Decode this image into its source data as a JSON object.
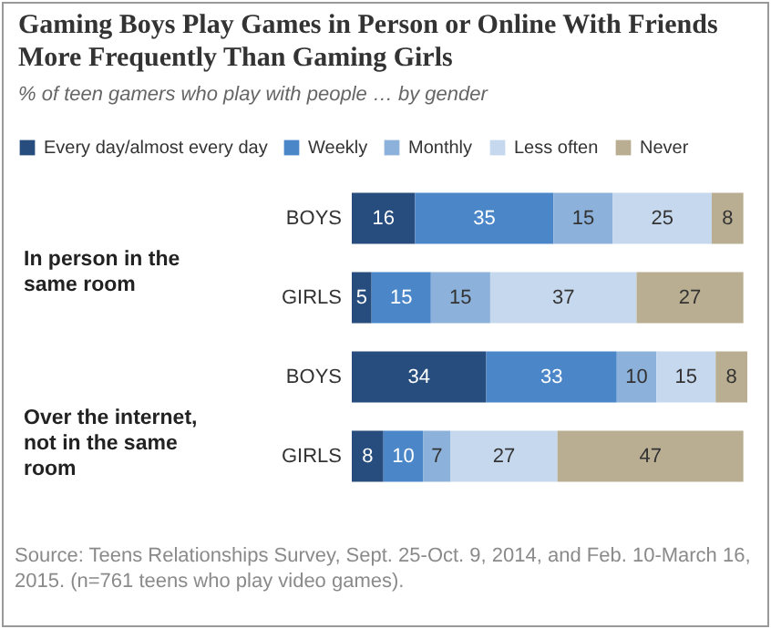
{
  "chart_data": {
    "type": "bar",
    "orientation": "horizontal",
    "stacked": true,
    "data_labels": true,
    "legend": "top",
    "title": "Gaming Boys Play Games in Person or Online With Friends More Frequently Than Gaming Girls",
    "subtitle": "% of teen gamers who play with people … by gender",
    "categories": [
      "BOYS",
      "GIRLS",
      "BOYS",
      "GIRLS"
    ],
    "series": [
      {
        "name": "Every day/almost every day",
        "color": "#264d7d",
        "values": [
          16,
          5,
          34,
          8
        ]
      },
      {
        "name": "Weekly",
        "color": "#4a86c8",
        "values": [
          35,
          15,
          33,
          10
        ]
      },
      {
        "name": "Monthly",
        "color": "#8cb1da",
        "values": [
          15,
          15,
          10,
          7
        ]
      },
      {
        "name": "Less often",
        "color": "#c6d8ee",
        "values": [
          25,
          37,
          15,
          27
        ]
      },
      {
        "name": "Never",
        "color": "#b9ae91",
        "values": [
          8,
          27,
          8,
          47
        ]
      }
    ],
    "annotations": [
      "In person in the same room",
      "Over the internet, not in the same room",
      "Source: Teens Relationships Survey, Sept. 25-Oct. 9, 2014, and Feb. 10-March 16, 2015.  (n=761 teens who play video games)."
    ]
  }
}
